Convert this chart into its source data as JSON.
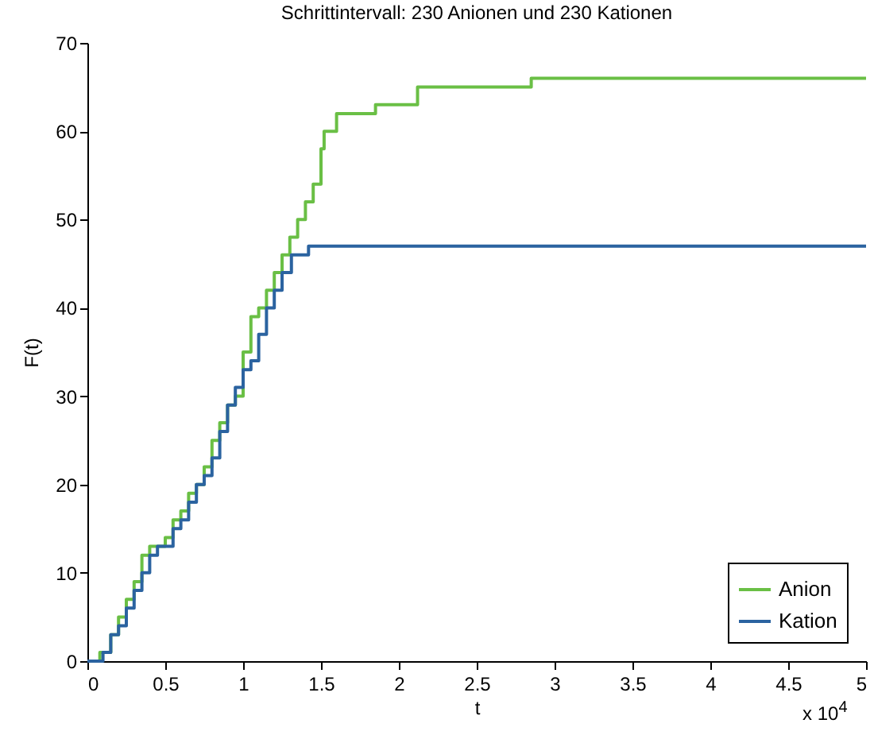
{
  "chart_data": {
    "type": "step",
    "title": "Schrittintervall: 230 Anionen und 230 Kationen",
    "xlabel": "t",
    "ylabel": "F(t)",
    "annotations": [
      "x 10$^{4}$"
    ],
    "xlim": [
      0,
      5
    ],
    "xticks": [
      0,
      0.5,
      1,
      1.5,
      2,
      2.5,
      3,
      3.5,
      4,
      4.5,
      5
    ],
    "ylim": [
      0,
      70
    ],
    "yticks": [
      0,
      10,
      20,
      30,
      40,
      50,
      60,
      70
    ],
    "legend": "bottom right",
    "grid": false,
    "series": [
      {
        "name": "Anion",
        "color": "#6abf45",
        "x": [
          0,
          0.08,
          0.15,
          0.2,
          0.25,
          0.3,
          0.35,
          0.4,
          0.5,
          0.55,
          0.6,
          0.65,
          0.7,
          0.75,
          0.8,
          0.85,
          0.9,
          0.95,
          1.0,
          1.05,
          1.1,
          1.15,
          1.2,
          1.25,
          1.3,
          1.35,
          1.4,
          1.45,
          1.5,
          1.52,
          1.6,
          1.85,
          2.12,
          2.85,
          5
        ],
        "values": [
          0,
          1,
          3,
          5,
          7,
          9,
          12,
          13,
          14,
          16,
          17,
          19,
          20,
          22,
          25,
          27,
          29,
          30,
          35,
          39,
          40,
          42,
          44,
          46,
          48,
          50,
          52,
          54,
          58,
          60,
          62,
          63,
          65,
          66,
          66
        ]
      },
      {
        "name": "Kation",
        "color": "#2b63a0",
        "x": [
          0,
          0.1,
          0.15,
          0.2,
          0.25,
          0.3,
          0.35,
          0.4,
          0.45,
          0.55,
          0.6,
          0.65,
          0.7,
          0.75,
          0.8,
          0.85,
          0.9,
          0.95,
          1.0,
          1.05,
          1.1,
          1.15,
          1.2,
          1.25,
          1.31,
          1.42,
          5
        ],
        "values": [
          0,
          1,
          3,
          4,
          6,
          8,
          10,
          12,
          13,
          15,
          16,
          18,
          20,
          21,
          23,
          26,
          29,
          31,
          33,
          34,
          37,
          40,
          42,
          44,
          46,
          47,
          47
        ]
      }
    ]
  }
}
